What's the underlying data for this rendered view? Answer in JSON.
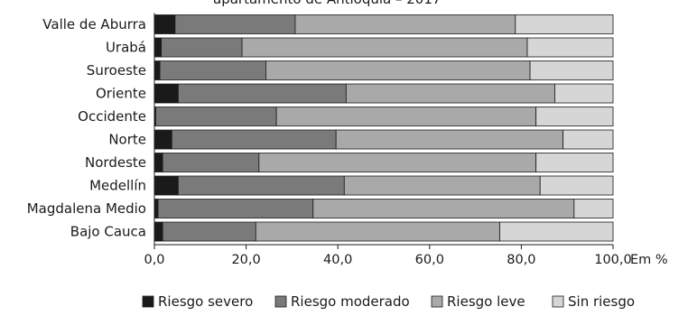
{
  "chart_data": {
    "type": "bar",
    "orientation": "horizontal",
    "stacked": true,
    "title_fragment": "apartamento de Antioquia – 2017",
    "categories": [
      "Valle de Aburra",
      "Urabá",
      "Suroeste",
      "Oriente",
      "Occidente",
      "Norte",
      "Nordeste",
      "Medellín",
      "Magdalena Medio",
      "Bajo Cauca"
    ],
    "series": [
      {
        "name": "Riesgo severo",
        "color": "#1a1a1a",
        "values": [
          4.5,
          1.5,
          1.2,
          5.2,
          0.3,
          3.8,
          1.8,
          5.2,
          0.8,
          1.8
        ]
      },
      {
        "name": "Riesgo moderado",
        "color": "#7a7a7a",
        "values": [
          26.2,
          17.6,
          23.1,
          36.6,
          26.3,
          35.8,
          21.0,
          36.2,
          33.8,
          20.3
        ]
      },
      {
        "name": "Riesgo leve",
        "color": "#a9a9a9",
        "values": [
          48.0,
          62.2,
          57.6,
          45.5,
          56.6,
          49.5,
          60.4,
          42.7,
          56.9,
          53.2
        ]
      },
      {
        "name": "Sin riesgo",
        "color": "#d6d6d6",
        "values": [
          21.3,
          18.7,
          18.1,
          12.7,
          16.8,
          10.9,
          16.8,
          15.9,
          8.5,
          24.7
        ]
      }
    ],
    "x_ticks": [
      "0,0",
      "20,0",
      "40,0",
      "60,0",
      "80,0",
      "100,0"
    ],
    "x_tick_values": [
      0,
      20,
      40,
      60,
      80,
      100
    ],
    "xlabel": "Em %",
    "xlim": [
      0,
      100
    ],
    "grid": false,
    "legend_position": "bottom"
  }
}
